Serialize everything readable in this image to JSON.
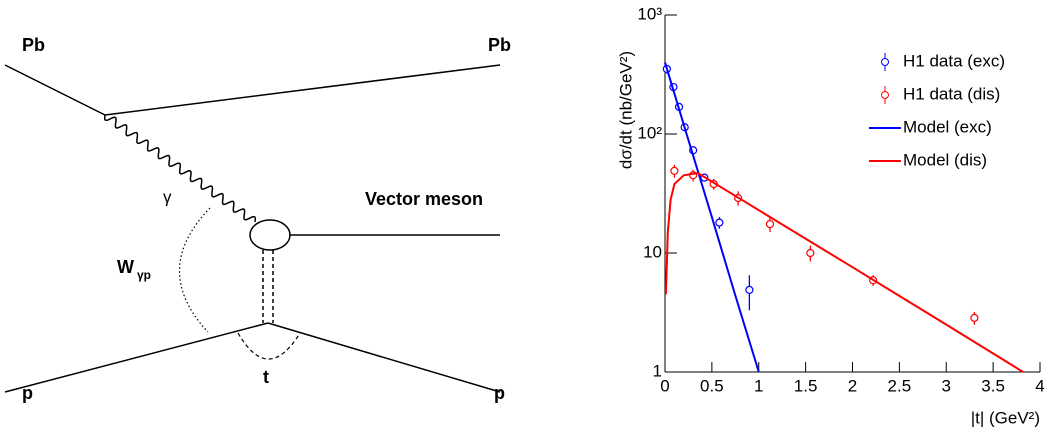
{
  "diagram": {
    "labels": {
      "pb_in": "Pb",
      "pb_out": "Pb",
      "photon": "γ",
      "meson": "Vector meson",
      "w": "W",
      "w_sub": "γp",
      "t": "t",
      "p_in": "p",
      "p_out": "p"
    }
  },
  "chart_data": {
    "type": "scatter",
    "y_label": "dσ/dt (nb/GeV²)",
    "x_label": "|t| (GeV²)",
    "xlim": [
      0,
      4
    ],
    "xticks": [
      0,
      0.5,
      1,
      1.5,
      2,
      2.5,
      3,
      3.5,
      4
    ],
    "ylim": [
      1,
      1000
    ],
    "yticks": [
      1,
      10,
      {
        "value": 100,
        "label": "10²"
      },
      {
        "value": 1000,
        "label": "10³"
      }
    ],
    "log_y": true,
    "legend": "upper right",
    "series": [
      {
        "name": "H1 data (exc)",
        "color": "#0000ff",
        "style": "points",
        "x": [
          0.02,
          0.09,
          0.15,
          0.21,
          0.3,
          0.42,
          0.58,
          0.9
        ],
        "values": [
          352,
          248,
          169,
          114,
          73,
          43,
          18,
          4.9
        ],
        "errors": [
          30,
          15,
          10,
          7,
          5,
          3,
          2,
          1.6
        ]
      },
      {
        "name": "H1 data (dis)",
        "color": "#ff0000",
        "style": "points",
        "x": [
          0.1,
          0.3,
          0.52,
          0.78,
          1.12,
          1.55,
          2.22,
          3.3
        ],
        "values": [
          49,
          45,
          38,
          29,
          17.5,
          10,
          5.9,
          2.85
        ],
        "errors": [
          6,
          5,
          4,
          4,
          2.5,
          1.5,
          0.6,
          0.35
        ]
      },
      {
        "name": "Model (exc)",
        "color": "#0000ff",
        "style": "line",
        "x": [
          0,
          0.25,
          0.5,
          0.75,
          1.0
        ],
        "values": [
          400,
          89,
          20,
          4.4,
          1
        ]
      },
      {
        "name": "Model (dis)",
        "color": "#ff0000",
        "style": "line",
        "x": [
          0.01,
          0.03,
          0.06,
          0.1,
          0.2,
          0.35,
          1,
          2,
          3,
          3.82
        ],
        "values": [
          4.5,
          15,
          28,
          38,
          45,
          47,
          22.9,
          7.6,
          2.5,
          1
        ]
      }
    ]
  }
}
